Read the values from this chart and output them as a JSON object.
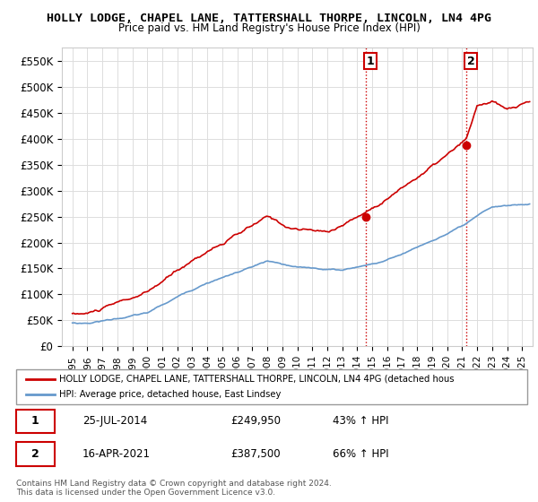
{
  "title_line1": "HOLLY LODGE, CHAPEL LANE, TATTERSHALL THORPE, LINCOLN, LN4 4PG",
  "title_line2": "Price paid vs. HM Land Registry's House Price Index (HPI)",
  "ylabel": "",
  "xlabel": "",
  "ylim": [
    0,
    575000
  ],
  "yticks": [
    0,
    50000,
    100000,
    150000,
    200000,
    250000,
    300000,
    350000,
    400000,
    450000,
    500000,
    550000
  ],
  "ytick_labels": [
    "£0",
    "£50K",
    "£100K",
    "£150K",
    "£200K",
    "£250K",
    "£300K",
    "£350K",
    "£400K",
    "£450K",
    "£500K",
    "£550K"
  ],
  "red_line_color": "#cc0000",
  "blue_line_color": "#6699cc",
  "background_color": "#ffffff",
  "grid_color": "#dddddd",
  "sale1_date": "25-JUL-2014",
  "sale1_price": 249950,
  "sale1_hpi": "43% ↑ HPI",
  "sale1_x": 2014.57,
  "sale2_date": "16-APR-2021",
  "sale2_price": 387500,
  "sale2_hpi": "66% ↑ HPI",
  "sale2_x": 2021.29,
  "vline_color": "#cc0000",
  "dot_color": "#cc0000",
  "legend_red_label": "HOLLY LODGE, CHAPEL LANE, TATTERSHALL THORPE, LINCOLN, LN4 4PG (detached hous",
  "legend_blue_label": "HPI: Average price, detached house, East Lindsey",
  "footer_text": "Contains HM Land Registry data © Crown copyright and database right 2024.\nThis data is licensed under the Open Government Licence v3.0.",
  "annotation1": "1",
  "annotation2": "2",
  "table_row1": [
    "1",
    "25-JUL-2014",
    "£249,950",
    "43% ↑ HPI"
  ],
  "table_row2": [
    "2",
    "16-APR-2021",
    "£387,500",
    "66% ↑ HPI"
  ]
}
